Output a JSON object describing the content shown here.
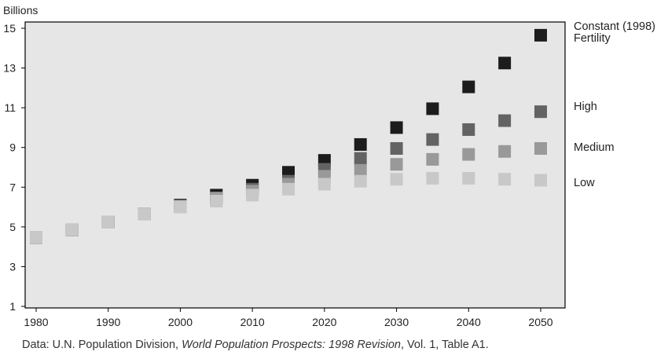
{
  "chart_data": {
    "type": "scatter",
    "ylabel": "Billions",
    "x": [
      1980,
      1985,
      1990,
      1995,
      2000,
      2005,
      2010,
      2015,
      2020,
      2025,
      2030,
      2035,
      2040,
      2045,
      2050
    ],
    "x_ticks": [
      "1980",
      "1990",
      "2000",
      "2010",
      "2020",
      "2030",
      "2040",
      "2050"
    ],
    "y_ticks": [
      "1",
      "3",
      "5",
      "7",
      "9",
      "11",
      "13",
      "15"
    ],
    "xlim": [
      1980,
      2050
    ],
    "ylim": [
      1,
      15.5
    ],
    "grid": false,
    "background": "#e6e6e6",
    "legend": "right, labels beside series ends",
    "series": [
      {
        "name": "Constant (1998) Fertility",
        "color": "#1c1c1c",
        "values": [
          4.45,
          4.85,
          5.25,
          5.65,
          6.1,
          6.6,
          7.1,
          7.75,
          8.35,
          9.15,
          10.0,
          10.95,
          12.05,
          13.25,
          14.65
        ]
      },
      {
        "name": "High",
        "color": "#636363",
        "values": [
          4.45,
          4.85,
          5.25,
          5.65,
          6.05,
          6.45,
          6.9,
          7.3,
          7.9,
          8.45,
          8.95,
          9.4,
          9.9,
          10.35,
          10.8
        ]
      },
      {
        "name": "Medium",
        "color": "#999999",
        "values": [
          4.45,
          4.85,
          5.25,
          5.65,
          6.05,
          6.45,
          6.8,
          7.15,
          7.55,
          7.85,
          8.15,
          8.4,
          8.65,
          8.8,
          8.95
        ]
      },
      {
        "name": "Low",
        "color": "#c8c8c8",
        "values": [
          4.45,
          4.85,
          5.25,
          5.65,
          6.0,
          6.3,
          6.6,
          6.9,
          7.15,
          7.3,
          7.4,
          7.45,
          7.45,
          7.4,
          7.35
        ]
      }
    ]
  },
  "source": {
    "prefix": "Data: U.N. Population Division, ",
    "title": "World Population Prospects: 1998 Revision",
    "suffix": ", Vol. 1, Table A1."
  }
}
